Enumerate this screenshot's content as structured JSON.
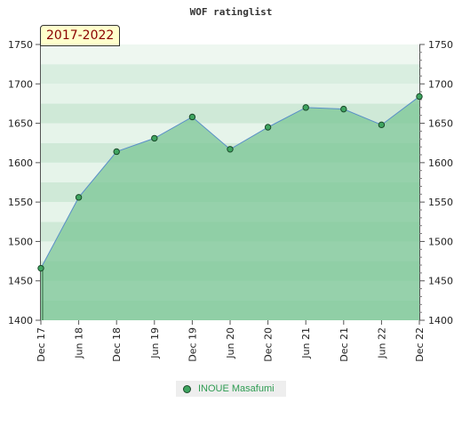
{
  "chart_data": {
    "type": "area",
    "title": "WOF ratinglist",
    "period_label": "2017-2022",
    "ylim": [
      1400,
      1750
    ],
    "yticks": [
      "1400",
      "1450",
      "1500",
      "1550",
      "1600",
      "1650",
      "1700",
      "1750"
    ],
    "categories": [
      "Dec 17",
      "Jun 18",
      "Dec 18",
      "Jun 19",
      "Dec 19",
      "Jun 20",
      "Dec 20",
      "Jun 21",
      "Dec 21",
      "Jun 22",
      "Dec 22"
    ],
    "series": [
      {
        "name": "INOUE Masafumi",
        "values": [
          1466,
          1556,
          1614,
          1631,
          1658,
          1617,
          1645,
          1670,
          1668,
          1648,
          1684
        ]
      }
    ],
    "grid": true,
    "legend_position": "bottom-center",
    "colors": {
      "fill": "#7bc695",
      "line": "#5a8fc8",
      "marker": "#3fa560",
      "band_light": "#dcefe2",
      "band_dark": "#b8dfc4"
    }
  }
}
